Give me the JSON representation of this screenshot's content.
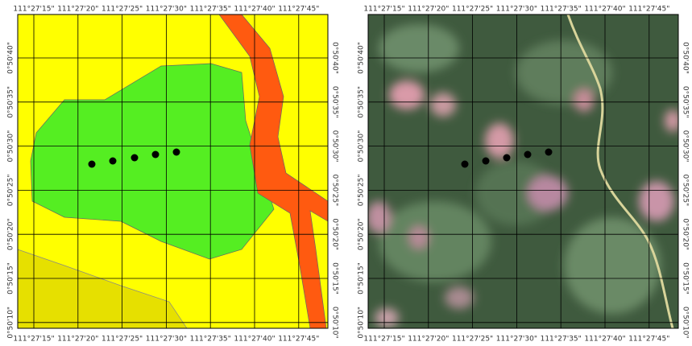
{
  "lon_labels": [
    "111°27'15\"",
    "111°27'20\"",
    "111°27'25\"",
    "111°27'30\"",
    "111°27'35\"",
    "111°27'40\"",
    "111°27'45\""
  ],
  "lat_labels": [
    "0°50'40\"",
    "0°50'35\"",
    "0°50'30\"",
    "0°50'25\"",
    "0°50'20\"",
    "0°50'15\"",
    "0°50'10\""
  ]
}
